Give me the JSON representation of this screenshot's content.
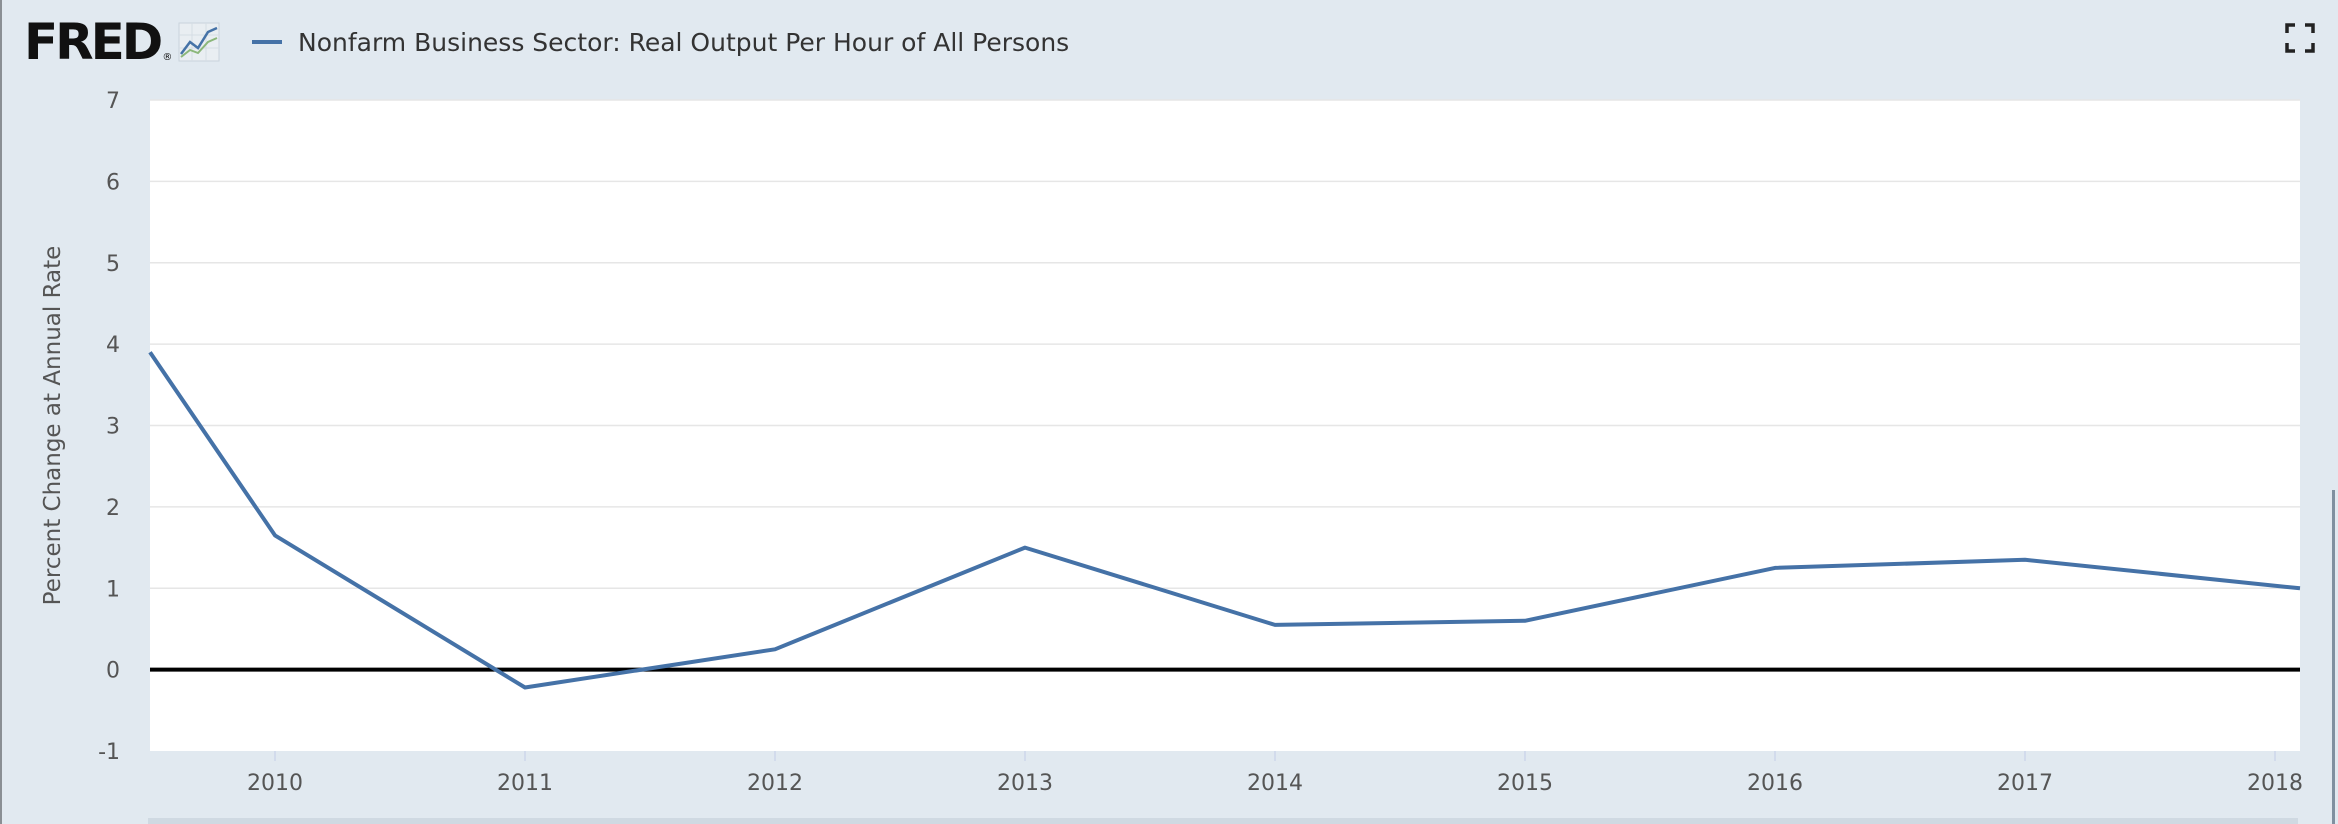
{
  "header": {
    "logo_text": "FRED",
    "logo_reg": "®",
    "legend_label": "Nonfarm Business Sector: Real Output Per Hour of All Persons"
  },
  "colors": {
    "series": "#4572a7",
    "zero_line": "#000000",
    "grid": "#e6e6e6",
    "plot_bg": "#ffffff",
    "page_bg": "#e1e9f0"
  },
  "icons": {
    "logo_graph": "line-chart-icon",
    "fullscreen": "fullscreen-icon"
  },
  "chart_data": {
    "type": "line",
    "title": "",
    "xlabel": "",
    "ylabel": "Percent Change at Annual Rate",
    "ylim": [
      -1,
      7
    ],
    "y_ticks": [
      -1,
      0,
      1,
      2,
      3,
      4,
      5,
      6,
      7
    ],
    "x_ticks": [
      "2010",
      "2011",
      "2012",
      "2013",
      "2014",
      "2015",
      "2016",
      "2017",
      "2018"
    ],
    "xlim": [
      2009.5,
      2018.1
    ],
    "grid": true,
    "zero_line": true,
    "series": [
      {
        "name": "Nonfarm Business Sector: Real Output Per Hour of All Persons",
        "x": [
          2009.5,
          2010,
          2011,
          2012,
          2013,
          2014,
          2015,
          2016,
          2017,
          2018.1
        ],
        "y": [
          3.9,
          1.65,
          -0.22,
          0.25,
          1.5,
          0.55,
          0.6,
          1.25,
          1.35,
          1.0
        ]
      }
    ]
  }
}
